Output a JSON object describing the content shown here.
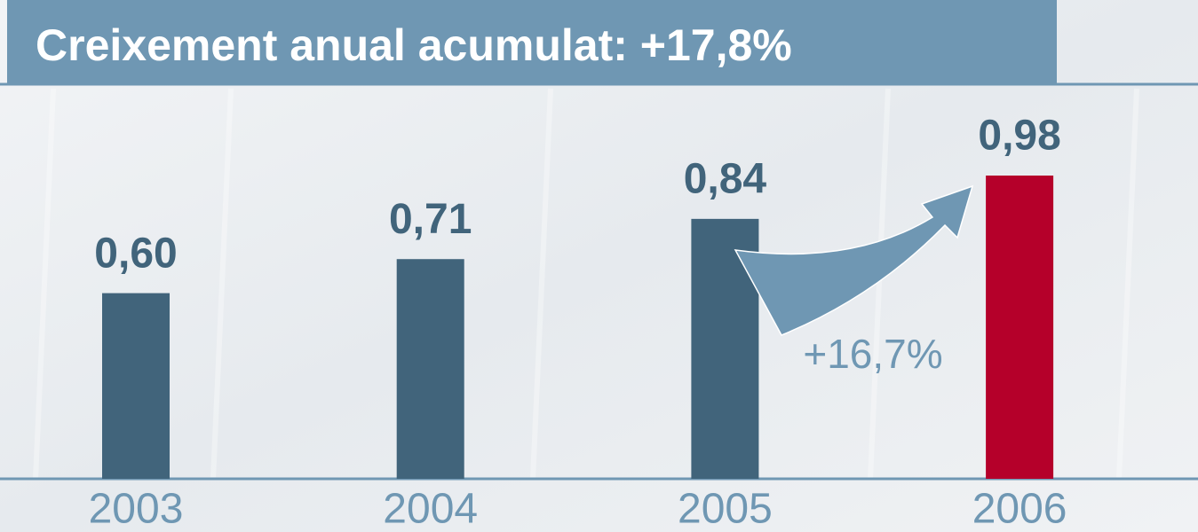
{
  "chart_data": {
    "type": "bar",
    "title": "Creixement anual acumulat: +17,8%",
    "categories": [
      "2003",
      "2004",
      "2005",
      "2006"
    ],
    "values": [
      0.6,
      0.71,
      0.84,
      0.98
    ],
    "value_labels": [
      "0,60",
      "0,71",
      "0,84",
      "0,98"
    ],
    "colors": [
      "#41647b",
      "#41647b",
      "#41647b",
      "#b5002a"
    ],
    "annotation": "+16,7%"
  }
}
